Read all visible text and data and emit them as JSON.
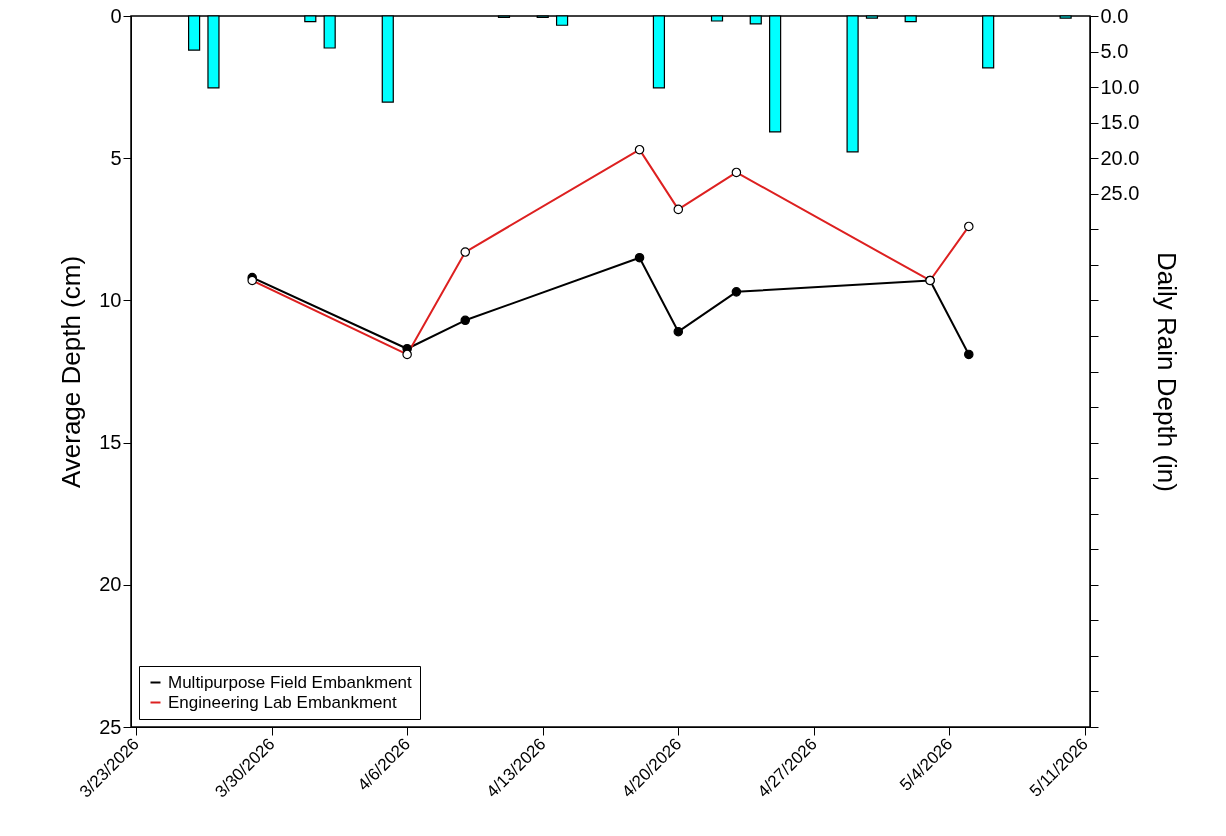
{
  "chart_data": {
    "type": "line",
    "xlabel": null,
    "ylabel": "Average Depth (cm)",
    "y2label": "Daily Rain Depth (in)",
    "x": [
      "2026-03-29",
      "2026-04-06",
      "2026-04-09",
      "2026-04-18",
      "2026-04-20",
      "2026-04-23",
      "2026-05-03",
      "2026-05-05"
    ],
    "series": [
      {
        "name": "Multipurpose Field Embankment",
        "color": "#000000",
        "values": [
          9.2,
          11.7,
          10.7,
          8.5,
          11.1,
          9.7,
          9.3,
          11.9
        ]
      },
      {
        "name": "Engineering Lab Embankment",
        "color": "#dd2020",
        "values": [
          9.3,
          11.9,
          8.3,
          4.7,
          6.8,
          5.5,
          9.3,
          7.4
        ]
      },
      {
        "type": "bar",
        "axis": "y2",
        "color": "#00ffff",
        "x": [
          "2026-03-26",
          "2026-03-27",
          "2026-04-01",
          "2026-04-02",
          "2026-04-05",
          "2026-04-11",
          "2026-04-13",
          "2026-04-14",
          "2026-04-19",
          "2026-04-22",
          "2026-04-24",
          "2026-04-25",
          "2026-04-29",
          "2026-04-30",
          "2026-05-02",
          "2026-05-06",
          "2026-05-10"
        ],
        "values": [
          4.8,
          10.1,
          0.8,
          4.5,
          12.1,
          0.2,
          0.2,
          1.3,
          10.1,
          0.7,
          1.1,
          16.3,
          19.1,
          0.3,
          0.8,
          7.3,
          0.3
        ]
      }
    ],
    "xlim": [
      "2026-03-23",
      "2026-05-11"
    ],
    "xticks": [
      {
        "value": "2026-03-23",
        "label": "3/23/2026"
      },
      {
        "value": "2026-03-30",
        "label": "3/30/2026"
      },
      {
        "value": "2026-04-06",
        "label": "4/6/2026"
      },
      {
        "value": "2026-04-13",
        "label": "4/13/2026"
      },
      {
        "value": "2026-04-20",
        "label": "4/20/2026"
      },
      {
        "value": "2026-04-27",
        "label": "4/27/2026"
      },
      {
        "value": "2026-05-04",
        "label": "5/4/2026"
      },
      {
        "value": "2026-05-11",
        "label": "5/11/2026"
      }
    ],
    "ylim": [
      25,
      0
    ],
    "yticks": [
      0,
      5,
      10,
      15,
      20,
      25
    ],
    "y2lim": [
      100,
      0
    ],
    "y2ticks": [
      {
        "value": 0,
        "label": "0.0"
      },
      {
        "value": 5,
        "label": "5.0"
      },
      {
        "value": 10,
        "label": "10.0"
      },
      {
        "value": 15,
        "label": "15.0"
      },
      {
        "value": 20,
        "label": "20.0"
      },
      {
        "value": 25,
        "label": "25.0"
      },
      {
        "value": 30,
        "label": null
      },
      {
        "value": 35,
        "label": null
      },
      {
        "value": 40,
        "label": null
      },
      {
        "value": 45,
        "label": null
      },
      {
        "value": 50,
        "label": null
      },
      {
        "value": 55,
        "label": null
      },
      {
        "value": 60,
        "label": null
      },
      {
        "value": 65,
        "label": null
      },
      {
        "value": 70,
        "label": null
      },
      {
        "value": 75,
        "label": null
      },
      {
        "value": 80,
        "label": null
      },
      {
        "value": 85,
        "label": null
      },
      {
        "value": 90,
        "label": null
      },
      {
        "value": 95,
        "label": null
      },
      {
        "value": 100,
        "label": null
      }
    ],
    "marker": "circle",
    "legend": "bottom left"
  }
}
